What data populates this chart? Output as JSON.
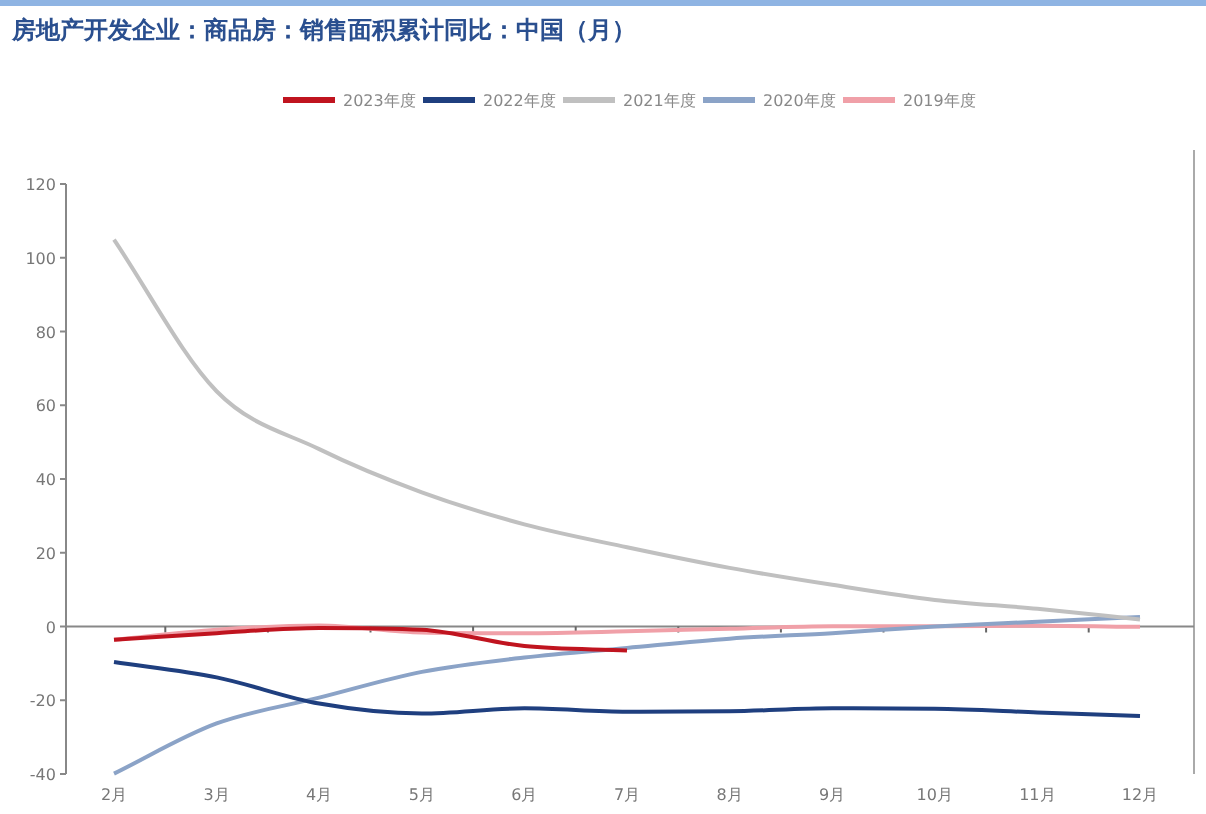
{
  "chart_data": {
    "type": "line",
    "title": "房地产开发企业：商品房：销售面积累计同比：中国（月）",
    "categories": [
      "2月",
      "3月",
      "4月",
      "5月",
      "6月",
      "7月",
      "8月",
      "9月",
      "10月",
      "11月",
      "12月"
    ],
    "series": [
      {
        "name": "2023年度",
        "color": "#c0141f",
        "values": [
          -3.6,
          -1.8,
          -0.4,
          -0.9,
          -5.3,
          -6.5,
          null,
          null,
          null,
          null,
          null
        ]
      },
      {
        "name": "2022年度",
        "color": "#1f3f7f",
        "values": [
          -9.6,
          -13.8,
          -20.9,
          -23.6,
          -22.2,
          -23.1,
          -23.0,
          -22.2,
          -22.3,
          -23.3,
          -24.3
        ]
      },
      {
        "name": "2021年度",
        "color": "#c0c0c0",
        "values": [
          104.9,
          63.8,
          48.1,
          36.4,
          27.7,
          21.5,
          15.9,
          11.3,
          7.2,
          4.8,
          1.9
        ]
      },
      {
        "name": "2020年度",
        "color": "#8ba3c7",
        "values": [
          -39.9,
          -26.3,
          -19.3,
          -12.3,
          -8.4,
          -5.8,
          -3.3,
          -1.8,
          0.0,
          1.3,
          2.6
        ]
      },
      {
        "name": "2019年度",
        "color": "#f0a0a8",
        "values": [
          -3.6,
          -0.9,
          0.3,
          -1.6,
          -1.8,
          -1.3,
          -0.6,
          0.1,
          0.1,
          0.2,
          -0.1
        ]
      }
    ],
    "ylim": [
      -40,
      120
    ],
    "yticks": [
      -40,
      -20,
      0,
      20,
      40,
      60,
      80,
      100,
      120
    ],
    "legend": "top",
    "marker": "none",
    "line_style": "solid"
  }
}
